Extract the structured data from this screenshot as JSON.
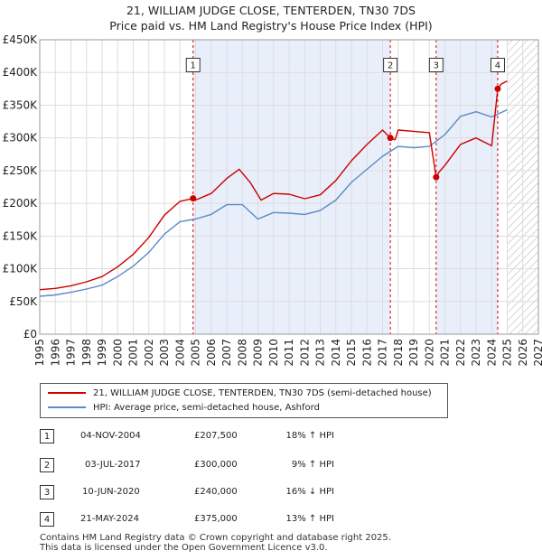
{
  "title_line1": "21, WILLIAM JUDGE CLOSE, TENTERDEN, TN30 7DS",
  "title_line2": "Price paid vs. HM Land Registry's House Price Index (HPI)",
  "colors": {
    "price_line": "#cc0000",
    "hpi_line": "#5b8ac6",
    "shade": "#e8eefa",
    "vline": "#dd0000"
  },
  "legend": {
    "price_label": "21, WILLIAM JUDGE CLOSE, TENTERDEN, TN30 7DS (semi-detached house)",
    "hpi_label": "HPI: Average price, semi-detached house, Ashford"
  },
  "transactions": [
    {
      "num": "1",
      "date": "04-NOV-2004",
      "price": "£207,500",
      "hpi": "18% ↑ HPI"
    },
    {
      "num": "2",
      "date": "03-JUL-2017",
      "price": "£300,000",
      "hpi": "9% ↑ HPI"
    },
    {
      "num": "3",
      "date": "10-JUN-2020",
      "price": "£240,000",
      "hpi": "16% ↓ HPI"
    },
    {
      "num": "4",
      "date": "21-MAY-2024",
      "price": "£375,000",
      "hpi": "13% ↑ HPI"
    }
  ],
  "footer_line1": "Contains HM Land Registry data © Crown copyright and database right 2025.",
  "footer_line2": "This data is licensed under the Open Government Licence v3.0.",
  "chart_data": {
    "type": "line",
    "xlim": [
      1995,
      2027
    ],
    "ylim": [
      0,
      450000
    ],
    "x_ticks": [
      1995,
      1996,
      1997,
      1998,
      1999,
      2000,
      2001,
      2002,
      2003,
      2004,
      2005,
      2006,
      2007,
      2008,
      2009,
      2010,
      2011,
      2012,
      2013,
      2014,
      2015,
      2016,
      2017,
      2018,
      2019,
      2020,
      2021,
      2022,
      2023,
      2024,
      2025,
      2026,
      2027
    ],
    "y_ticks": [
      {
        "value": 0,
        "label": "£0"
      },
      {
        "value": 50000,
        "label": "£50K"
      },
      {
        "value": 100000,
        "label": "£100K"
      },
      {
        "value": 150000,
        "label": "£150K"
      },
      {
        "value": 200000,
        "label": "£200K"
      },
      {
        "value": 250000,
        "label": "£250K"
      },
      {
        "value": 300000,
        "label": "£300K"
      },
      {
        "value": 350000,
        "label": "£350K"
      },
      {
        "value": 400000,
        "label": "£400K"
      },
      {
        "value": 450000,
        "label": "£450K"
      }
    ],
    "hatch_from": 2025.0,
    "shaded_spans": [
      [
        2004.84,
        2017.5
      ],
      [
        2020.44,
        2024.39
      ]
    ],
    "markers": [
      {
        "label": "1",
        "x": 2004.84,
        "y": 207500
      },
      {
        "label": "2",
        "x": 2017.5,
        "y": 300000
      },
      {
        "label": "3",
        "x": 2020.44,
        "y": 240000
      },
      {
        "label": "4",
        "x": 2024.39,
        "y": 375000
      }
    ],
    "series": [
      {
        "name": "21, WILLIAM JUDGE CLOSE, TENTERDEN, TN30 7DS (semi-detached house)",
        "x": [
          1995,
          1996,
          1997,
          1998,
          1999,
          2000,
          2001,
          2002,
          2003,
          2004,
          2004.84,
          2005,
          2006,
          2007,
          2007.8,
          2008.5,
          2009.2,
          2010,
          2011,
          2012,
          2013,
          2014,
          2015,
          2016,
          2017,
          2017.5,
          2017.8,
          2018,
          2019,
          2020,
          2020.44,
          2020.6,
          2021,
          2022,
          2023,
          2024,
          2024.39,
          2024.6,
          2025
        ],
        "values": [
          68000,
          70000,
          74000,
          80000,
          88000,
          103000,
          122000,
          148000,
          182000,
          203000,
          207500,
          205000,
          215000,
          238000,
          252000,
          232000,
          205000,
          215000,
          214000,
          207000,
          213000,
          235000,
          265000,
          290000,
          312000,
          300000,
          297000,
          312000,
          310000,
          308000,
          240000,
          247000,
          258000,
          290000,
          300000,
          288000,
          375000,
          382000,
          387000
        ]
      },
      {
        "name": "HPI: Average price, semi-detached house, Ashford",
        "x": [
          1995,
          1996,
          1997,
          1998,
          1999,
          2000,
          2001,
          2002,
          2003,
          2004,
          2005,
          2006,
          2007,
          2008,
          2009,
          2010,
          2011,
          2012,
          2013,
          2014,
          2015,
          2016,
          2017,
          2018,
          2019,
          2020,
          2021,
          2022,
          2023,
          2024,
          2025
        ],
        "values": [
          58000,
          60000,
          64000,
          69000,
          75000,
          88000,
          104000,
          125000,
          153000,
          172000,
          176000,
          183000,
          198000,
          198000,
          176000,
          186000,
          185000,
          183000,
          189000,
          205000,
          232000,
          252000,
          272000,
          287000,
          285000,
          287000,
          305000,
          333000,
          340000,
          332000,
          343000
        ]
      }
    ]
  }
}
